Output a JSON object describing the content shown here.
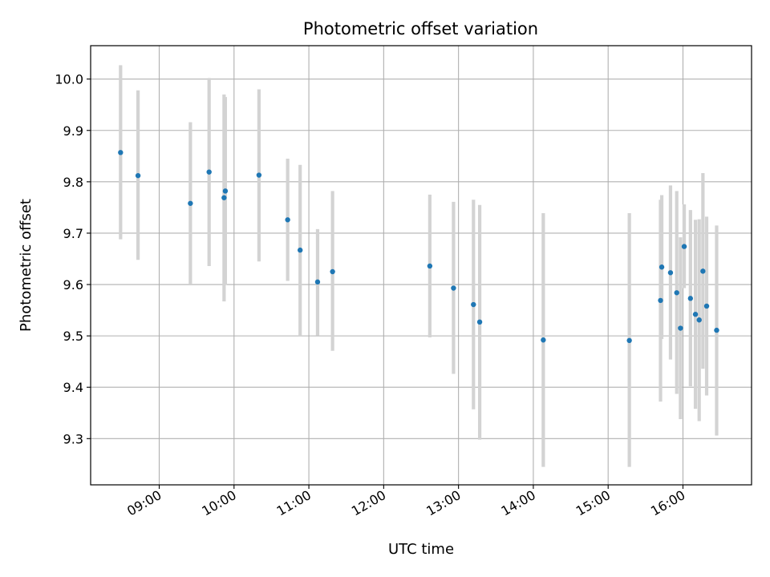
{
  "chart_data": {
    "type": "scatter",
    "title": "Photometric offset variation",
    "xlabel": "UTC time",
    "ylabel": "Photometric offset",
    "xlim": [
      "08:05",
      "16:55"
    ],
    "ylim": [
      9.21,
      10.065
    ],
    "grid": true,
    "x_ticks": [
      "09:00",
      "10:00",
      "11:00",
      "12:00",
      "13:00",
      "14:00",
      "15:00",
      "16:00"
    ],
    "y_ticks": [
      "9.3",
      "9.4",
      "9.5",
      "9.6",
      "9.7",
      "9.8",
      "9.9",
      "10.0"
    ],
    "colors": {
      "points": "#1f77b4",
      "error_bars": "#d3d3d3",
      "grid": "#b0b0b0"
    },
    "series": [
      {
        "points": [
          {
            "x": "08:29",
            "y": 9.857,
            "lo": 9.688,
            "hi": 10.027
          },
          {
            "x": "08:43",
            "y": 9.812,
            "lo": 9.648,
            "hi": 9.978
          },
          {
            "x": "09:25",
            "y": 9.758,
            "lo": 9.6,
            "hi": 9.916
          },
          {
            "x": "09:40",
            "y": 9.819,
            "lo": 9.636,
            "hi": 10.002
          },
          {
            "x": "09:52",
            "y": 9.769,
            "lo": 9.567,
            "hi": 9.97
          },
          {
            "x": "09:53",
            "y": 9.782,
            "lo": 9.599,
            "hi": 9.965
          },
          {
            "x": "10:20",
            "y": 9.813,
            "lo": 9.645,
            "hi": 9.98
          },
          {
            "x": "10:43",
            "y": 9.726,
            "lo": 9.607,
            "hi": 9.845
          },
          {
            "x": "10:53",
            "y": 9.667,
            "lo": 9.5,
            "hi": 9.833
          },
          {
            "x": "11:07",
            "y": 9.605,
            "lo": 9.501,
            "hi": 9.708
          },
          {
            "x": "11:19",
            "y": 9.625,
            "lo": 9.471,
            "hi": 9.782
          },
          {
            "x": "12:37",
            "y": 9.636,
            "lo": 9.497,
            "hi": 9.775
          },
          {
            "x": "12:56",
            "y": 9.593,
            "lo": 9.426,
            "hi": 9.761
          },
          {
            "x": "13:12",
            "y": 9.561,
            "lo": 9.357,
            "hi": 9.765
          },
          {
            "x": "13:17",
            "y": 9.527,
            "lo": 9.298,
            "hi": 9.755
          },
          {
            "x": "14:08",
            "y": 9.492,
            "lo": 9.245,
            "hi": 9.739
          },
          {
            "x": "15:17",
            "y": 9.491,
            "lo": 9.245,
            "hi": 9.739
          },
          {
            "x": "15:42",
            "y": 9.569,
            "lo": 9.372,
            "hi": 9.765
          },
          {
            "x": "15:43",
            "y": 9.634,
            "lo": 9.494,
            "hi": 9.774
          },
          {
            "x": "15:50",
            "y": 9.623,
            "lo": 9.454,
            "hi": 9.793
          },
          {
            "x": "15:55",
            "y": 9.584,
            "lo": 9.387,
            "hi": 9.782
          },
          {
            "x": "15:58",
            "y": 9.515,
            "lo": 9.338,
            "hi": 9.692
          },
          {
            "x": "16:01",
            "y": 9.674,
            "lo": 9.593,
            "hi": 9.756
          },
          {
            "x": "16:06",
            "y": 9.573,
            "lo": 9.402,
            "hi": 9.745
          },
          {
            "x": "16:10",
            "y": 9.542,
            "lo": 9.358,
            "hi": 9.726
          },
          {
            "x": "16:13",
            "y": 9.531,
            "lo": 9.334,
            "hi": 9.727
          },
          {
            "x": "16:16",
            "y": 9.626,
            "lo": 9.436,
            "hi": 9.817
          },
          {
            "x": "16:19",
            "y": 9.558,
            "lo": 9.384,
            "hi": 9.732
          },
          {
            "x": "16:27",
            "y": 9.511,
            "lo": 9.306,
            "hi": 9.715
          }
        ]
      }
    ]
  }
}
